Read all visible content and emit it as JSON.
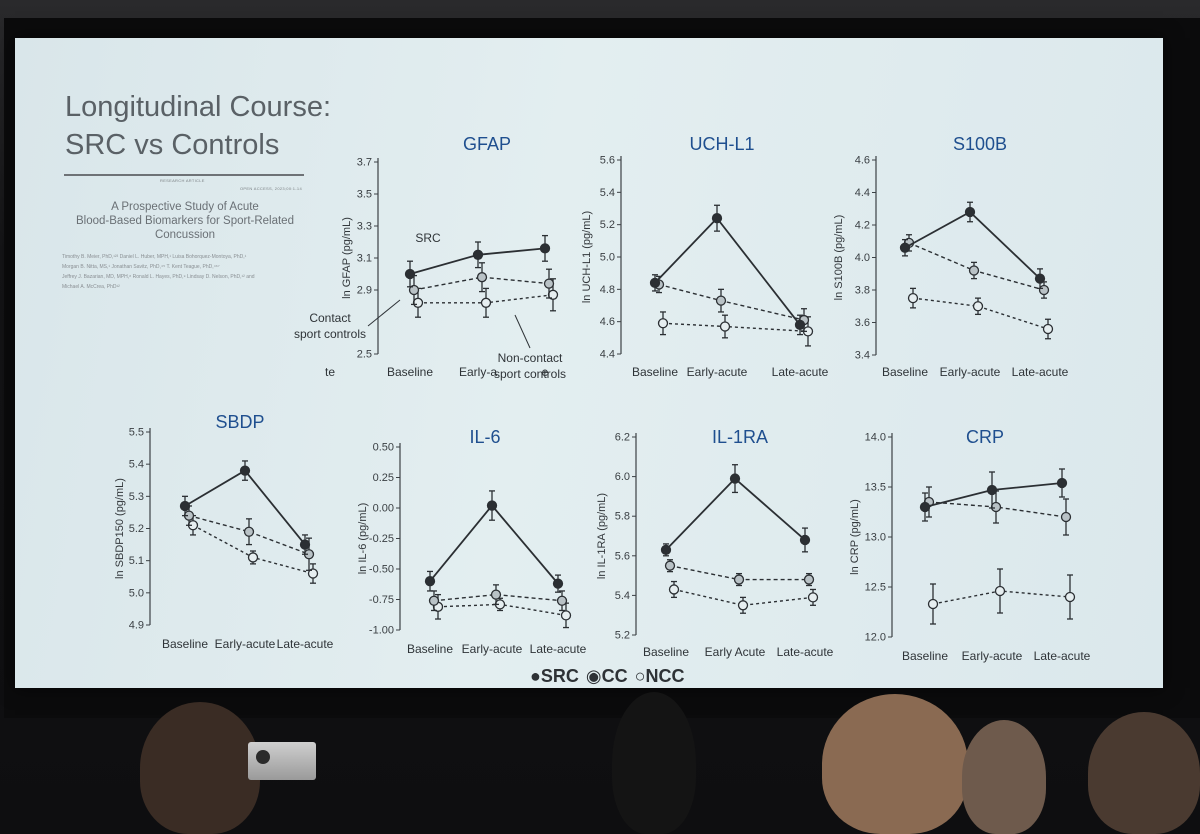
{
  "slide": {
    "title_line1": "Longitudinal Course:",
    "title_line2": "SRC vs Controls",
    "legend": {
      "src": "●SRC",
      "cc": "◉CC",
      "ncc": "○NCC"
    }
  },
  "paper": {
    "header_left": "RESEARCH ARTICLE",
    "header_right": "OPEN ACCESS, 2023;00:1-14",
    "title_line1": "A Prospective Study of Acute",
    "title_line2": "Blood-Based Biomarkers for Sport-Related",
    "title_line3": "Concussion",
    "authors_line1": "Timothy B. Meier, PhD,¹²³ Daniel L. Huber, MPH,¹ Luisa Bohorquez-Montoya, PhD,¹",
    "authors_line2": "Morgan B. Nitta, MS,¹ Jonathan Savitz, PhD,⁴⁵ T. Kent Teague, PhD,⁴⁶⁷",
    "authors_line3": "Jeffrey J. Bazarian, MD, MPH,⁸ Ronald L. Hayes, PhD,⁹ Lindsay D. Nelson, PhD,¹² and",
    "authors_line4": "Michael A. McCrea, PhD¹²"
  },
  "chart_data": [
    {
      "type": "line",
      "title": "GFAP",
      "ylabel": "ln GFAP (pg/mL)",
      "ylim": [
        2.5,
        3.7
      ],
      "yticks": [
        "2.5",
        "2.9",
        "3.1",
        "3.3",
        "3.5",
        "3.7"
      ],
      "categories": [
        "Baseline",
        "Early-a",
        "e"
      ],
      "annotations": {
        "src": "SRC",
        "cc": "Contact\nsport controls",
        "ncc": "Non-contact\nsport controls",
        "axis_stub": "te"
      },
      "series": [
        {
          "name": "SRC",
          "values": [
            3.0,
            3.12,
            3.16
          ],
          "errors": [
            0.08,
            0.08,
            0.08
          ]
        },
        {
          "name": "CC",
          "values": [
            2.9,
            2.98,
            2.94
          ],
          "errors": [
            0.09,
            0.09,
            0.09
          ]
        },
        {
          "name": "NCC",
          "values": [
            2.82,
            2.82,
            2.87
          ],
          "errors": [
            0.09,
            0.09,
            0.1
          ]
        }
      ]
    },
    {
      "type": "line",
      "title": "UCH-L1",
      "ylabel": "ln UCH-L1 (pg/mL)",
      "ylim": [
        4.4,
        5.6
      ],
      "yticks": [
        "4.4",
        "4.6",
        "4.8",
        "5.0",
        "5.2",
        "5.4",
        "5.6"
      ],
      "categories": [
        "Baseline",
        "Early-acute",
        "Late-acute"
      ],
      "series": [
        {
          "name": "SRC",
          "values": [
            4.84,
            5.24,
            4.58
          ],
          "errors": [
            0.05,
            0.08,
            0.06
          ]
        },
        {
          "name": "CC",
          "values": [
            4.83,
            4.73,
            4.61
          ],
          "errors": [
            0.05,
            0.07,
            0.07
          ]
        },
        {
          "name": "NCC",
          "values": [
            4.59,
            4.57,
            4.54
          ],
          "errors": [
            0.07,
            0.07,
            0.09
          ]
        }
      ]
    },
    {
      "type": "line",
      "title": "S100B",
      "ylabel": "ln S100B (pg/mL)",
      "ylim": [
        3.4,
        4.6
      ],
      "yticks": [
        "3.4",
        "3.6",
        "3.8",
        "4.0",
        "4.2",
        "4.4",
        "4.6"
      ],
      "categories": [
        "Baseline",
        "Early-acute",
        "Late-acute"
      ],
      "series": [
        {
          "name": "SRC",
          "values": [
            4.06,
            4.28,
            3.87
          ],
          "errors": [
            0.05,
            0.06,
            0.06
          ]
        },
        {
          "name": "CC",
          "values": [
            4.09,
            3.92,
            3.8
          ],
          "errors": [
            0.05,
            0.05,
            0.05
          ]
        },
        {
          "name": "NCC",
          "values": [
            3.75,
            3.7,
            3.56
          ],
          "errors": [
            0.06,
            0.05,
            0.06
          ]
        }
      ]
    },
    {
      "type": "line",
      "title": "SBDP",
      "ylabel": "ln SBDP150 (pg/mL)",
      "ylim": [
        4.9,
        5.5
      ],
      "yticks": [
        "4.9",
        "5.0",
        "5.1",
        "5.2",
        "5.3",
        "5.4",
        "5.5"
      ],
      "categories": [
        "Baseline",
        "Early-acute",
        "Late-acute"
      ],
      "series": [
        {
          "name": "SRC",
          "values": [
            5.27,
            5.38,
            5.15
          ],
          "errors": [
            0.03,
            0.03,
            0.03
          ]
        },
        {
          "name": "CC",
          "values": [
            5.24,
            5.19,
            5.12
          ],
          "errors": [
            0.03,
            0.04,
            0.05
          ]
        },
        {
          "name": "NCC",
          "values": [
            5.21,
            5.11,
            5.06
          ],
          "errors": [
            0.03,
            0.02,
            0.03
          ]
        }
      ]
    },
    {
      "type": "line",
      "title": "IL-6",
      "ylabel": "ln IL-6 (pg/mL)",
      "ylim": [
        -1.0,
        0.5
      ],
      "yticks": [
        "-1.00",
        "-0.75",
        "-0.50",
        "-0.25",
        "0.00",
        "0.25",
        "0.50"
      ],
      "categories": [
        "Baseline",
        "Early-acute",
        "Late-acute"
      ],
      "series": [
        {
          "name": "SRC",
          "values": [
            -0.6,
            0.02,
            -0.62
          ],
          "errors": [
            0.08,
            0.12,
            0.07
          ]
        },
        {
          "name": "CC",
          "values": [
            -0.76,
            -0.71,
            -0.76
          ],
          "errors": [
            0.08,
            0.08,
            0.08
          ]
        },
        {
          "name": "NCC",
          "values": [
            -0.81,
            -0.79,
            -0.88
          ],
          "errors": [
            0.1,
            0.05,
            0.1
          ]
        }
      ]
    },
    {
      "type": "line",
      "title": "IL-1RA",
      "ylabel": "ln IL-1RA (pg/mL)",
      "ylim": [
        5.2,
        6.2
      ],
      "yticks": [
        "5.2",
        "5.4",
        "5.6",
        "5.8",
        "6.0",
        "6.2"
      ],
      "categories": [
        "Baseline",
        "Early Acute",
        "Late-acute"
      ],
      "series": [
        {
          "name": "SRC",
          "values": [
            5.63,
            5.99,
            5.68
          ],
          "errors": [
            0.03,
            0.07,
            0.06
          ]
        },
        {
          "name": "CC",
          "values": [
            5.55,
            5.48,
            5.48
          ],
          "errors": [
            0.03,
            0.03,
            0.03
          ]
        },
        {
          "name": "NCC",
          "values": [
            5.43,
            5.35,
            5.39
          ],
          "errors": [
            0.04,
            0.04,
            0.04
          ]
        }
      ]
    },
    {
      "type": "line",
      "title": "CRP",
      "ylabel": "ln CRP (pg/mL)",
      "ylim": [
        12.0,
        14.0
      ],
      "yticks": [
        "12.0",
        "12.5",
        "13.0",
        "13.5",
        "14.0"
      ],
      "categories": [
        "Baseline",
        "Early-acute",
        "Late-acute"
      ],
      "series": [
        {
          "name": "SRC",
          "values": [
            13.3,
            13.47,
            13.54
          ],
          "errors": [
            0.14,
            0.18,
            0.14
          ]
        },
        {
          "name": "CC",
          "values": [
            13.35,
            13.3,
            13.2
          ],
          "errors": [
            0.15,
            0.16,
            0.18
          ]
        },
        {
          "name": "NCC",
          "values": [
            12.33,
            12.46,
            12.4
          ],
          "errors": [
            0.2,
            0.22,
            0.22
          ]
        }
      ]
    }
  ]
}
